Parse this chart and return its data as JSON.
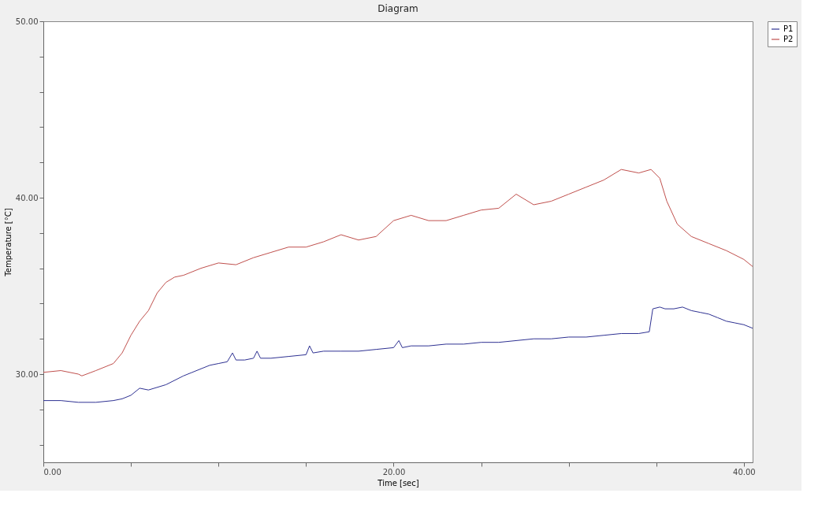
{
  "chart_data": {
    "type": "line",
    "title": "Diagram",
    "xlabel": "Time [sec]",
    "ylabel": "Temperature [°C]",
    "xlim": [
      0,
      40.5
    ],
    "ylim": [
      25,
      50
    ],
    "xticks": [
      {
        "value": 0,
        "label": "0.00"
      },
      {
        "value": 5,
        "label": null
      },
      {
        "value": 10,
        "label": null
      },
      {
        "value": 15,
        "label": null
      },
      {
        "value": 20,
        "label": "20.00"
      },
      {
        "value": 25,
        "label": null
      },
      {
        "value": 30,
        "label": null
      },
      {
        "value": 35,
        "label": null
      },
      {
        "value": 40,
        "label": "40.00"
      }
    ],
    "yticks": [
      {
        "value": 26,
        "label": null
      },
      {
        "value": 28,
        "label": null
      },
      {
        "value": 30,
        "label": "30.00"
      },
      {
        "value": 32,
        "label": null
      },
      {
        "value": 34,
        "label": null
      },
      {
        "value": 36,
        "label": null
      },
      {
        "value": 38,
        "label": null
      },
      {
        "value": 40,
        "label": "40.00"
      },
      {
        "value": 42,
        "label": null
      },
      {
        "value": 44,
        "label": null
      },
      {
        "value": 46,
        "label": null
      },
      {
        "value": 48,
        "label": null
      },
      {
        "value": 50,
        "label": "50.00"
      }
    ],
    "grid": false,
    "legend": "right",
    "marker": "none",
    "line_style": "solid",
    "series": [
      {
        "name": "P1",
        "color": "#2e3192",
        "x": [
          0,
          1,
          2,
          3,
          4,
          4.5,
          5,
          5.5,
          6,
          7,
          8,
          8.5,
          9,
          9.5,
          10,
          10.5,
          10.8,
          11,
          11.5,
          12,
          12.2,
          12.4,
          13,
          14,
          15,
          15.2,
          15.4,
          16,
          17,
          18,
          19,
          20,
          20.3,
          20.5,
          21,
          22,
          23,
          24,
          25,
          26,
          27,
          28,
          29,
          30,
          31,
          32,
          33,
          34,
          34.6,
          34.8,
          35.2,
          35.5,
          36,
          36.5,
          37,
          37.5,
          38,
          38.5,
          39,
          39.5,
          40,
          40.5
        ],
        "values": [
          28.5,
          28.5,
          28.4,
          28.4,
          28.5,
          28.6,
          28.8,
          29.2,
          29.1,
          29.4,
          29.9,
          30.1,
          30.3,
          30.5,
          30.6,
          30.7,
          31.2,
          30.8,
          30.8,
          30.9,
          31.3,
          30.9,
          30.9,
          31.0,
          31.1,
          31.6,
          31.2,
          31.3,
          31.3,
          31.3,
          31.4,
          31.5,
          31.9,
          31.5,
          31.6,
          31.6,
          31.7,
          31.7,
          31.8,
          31.8,
          31.9,
          32.0,
          32.0,
          32.1,
          32.1,
          32.2,
          32.3,
          32.3,
          32.4,
          33.7,
          33.8,
          33.7,
          33.7,
          33.8,
          33.6,
          33.5,
          33.4,
          33.2,
          33.0,
          32.9,
          32.8,
          32.6
        ]
      },
      {
        "name": "P2",
        "color": "#c0504d",
        "x": [
          0,
          1,
          2,
          2.2,
          3,
          4,
          4.5,
          5,
          5.5,
          6,
          6.5,
          7,
          7.5,
          8,
          9,
          10,
          11,
          12,
          13,
          14,
          15,
          16,
          17,
          18,
          19,
          20,
          21,
          22,
          23,
          24,
          25,
          26,
          27,
          28,
          29,
          30,
          31,
          32,
          33,
          34,
          34.7,
          35.2,
          35.6,
          36.2,
          37,
          38,
          39,
          40,
          40.5
        ],
        "values": [
          30.1,
          30.2,
          30.0,
          29.9,
          30.2,
          30.6,
          31.2,
          32.2,
          33.0,
          33.6,
          34.6,
          35.2,
          35.5,
          35.6,
          36.0,
          36.3,
          36.2,
          36.6,
          36.9,
          37.2,
          37.2,
          37.5,
          37.9,
          37.6,
          37.8,
          38.7,
          39.0,
          38.7,
          38.7,
          39.0,
          39.3,
          39.4,
          40.2,
          39.6,
          39.8,
          40.2,
          40.6,
          41.0,
          41.6,
          41.4,
          41.6,
          41.1,
          39.8,
          38.5,
          37.8,
          37.4,
          37.0,
          36.5,
          36.1
        ]
      }
    ]
  }
}
